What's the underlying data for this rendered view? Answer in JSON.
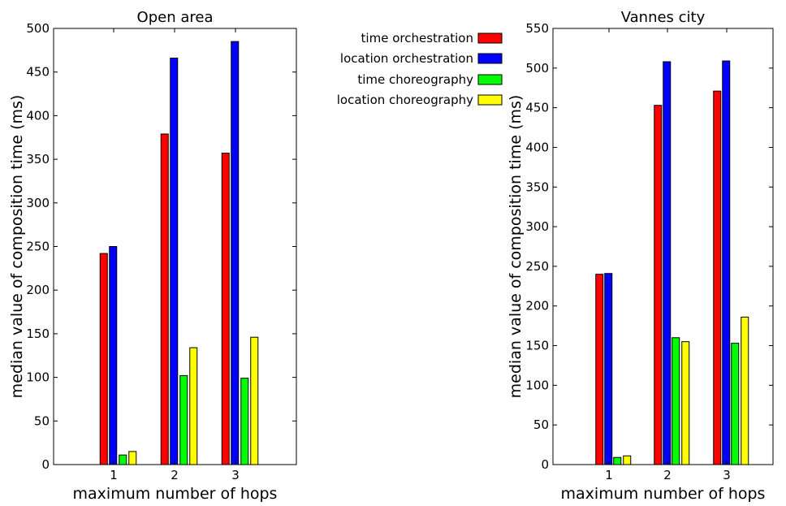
{
  "chart_data": [
    {
      "type": "bar",
      "title": "Open area",
      "xlabel": "maximum number of hops",
      "ylabel": "median value of composition time (ms)",
      "categories": [
        "1",
        "2",
        "3"
      ],
      "ylim": [
        0,
        500
      ],
      "yticks": [
        0,
        50,
        100,
        150,
        200,
        250,
        300,
        350,
        400,
        450,
        500
      ],
      "grid": false,
      "series": [
        {
          "name": "time orchestration",
          "color": "#ff0000",
          "values": [
            242,
            379,
            357
          ]
        },
        {
          "name": "location orchestration",
          "color": "#0000ff",
          "values": [
            250,
            466,
            485
          ]
        },
        {
          "name": "time choreography",
          "color": "#00ff00",
          "values": [
            11,
            102,
            99
          ]
        },
        {
          "name": "location choreography",
          "color": "#ffff00",
          "values": [
            15,
            134,
            146
          ]
        }
      ]
    },
    {
      "type": "bar",
      "title": "Vannes city",
      "xlabel": "maximum number of hops",
      "ylabel": "median value of composition time (ms)",
      "categories": [
        "1",
        "2",
        "3"
      ],
      "ylim": [
        0,
        550
      ],
      "yticks": [
        0,
        50,
        100,
        150,
        200,
        250,
        300,
        350,
        400,
        450,
        500,
        550
      ],
      "grid": false,
      "series": [
        {
          "name": "time orchestration",
          "color": "#ff0000",
          "values": [
            240,
            453,
            471
          ]
        },
        {
          "name": "location orchestration",
          "color": "#0000ff",
          "values": [
            241,
            508,
            509
          ]
        },
        {
          "name": "time choreography",
          "color": "#00ff00",
          "values": [
            9,
            160,
            153
          ]
        },
        {
          "name": "location choreography",
          "color": "#ffff00",
          "values": [
            11,
            155,
            186
          ]
        }
      ]
    }
  ],
  "legend": {
    "placement": "top-center",
    "entries": [
      {
        "label": "time orchestration",
        "color": "#ff0000"
      },
      {
        "label": "location orchestration",
        "color": "#0000ff"
      },
      {
        "label": "time choreography",
        "color": "#00ff00"
      },
      {
        "label": "location choreography",
        "color": "#ffff00"
      }
    ]
  }
}
